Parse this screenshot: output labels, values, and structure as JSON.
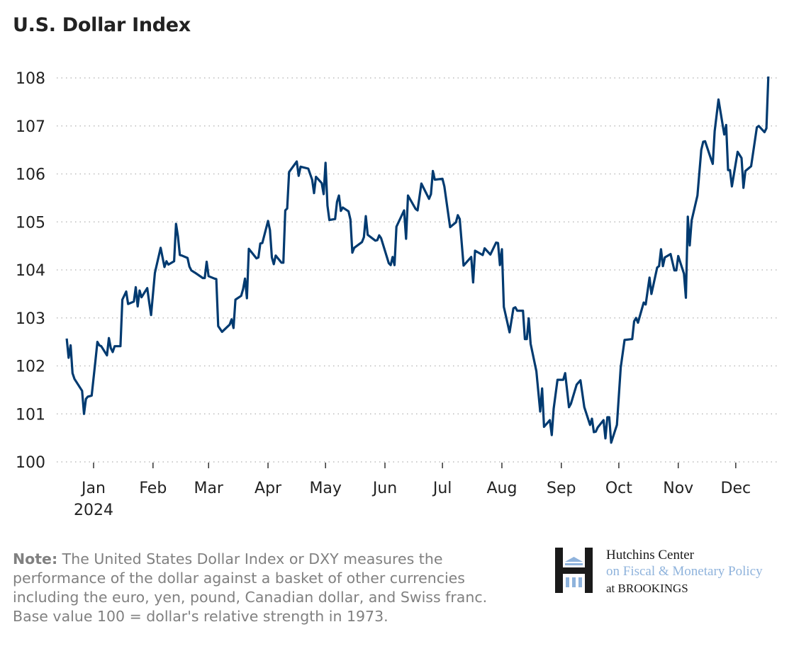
{
  "chart_data": {
    "type": "line",
    "title": "U.S. Dollar Index",
    "xlabel": "",
    "ylabel": "",
    "ylim": [
      100,
      108
    ],
    "yticks": [
      "100",
      "101",
      "102",
      "103",
      "104",
      "105",
      "106",
      "107",
      "108"
    ],
    "xticks": [
      "Jan",
      "Feb",
      "Mar",
      "Apr",
      "May",
      "Jun",
      "Jul",
      "Aug",
      "Sep",
      "Oct",
      "Nov",
      "Dec"
    ],
    "xtick_year": "2024",
    "grid": "horizontal dotted",
    "line_color": "#003a70",
    "series": [
      {
        "points": [
          [
            "2023-12-18",
            102.57
          ],
          [
            "2023-12-19",
            102.17
          ],
          [
            "2023-12-20",
            102.43
          ],
          [
            "2023-12-21",
            101.85
          ],
          [
            "2023-12-22",
            101.73
          ],
          [
            "2023-12-26",
            101.48
          ],
          [
            "2023-12-27",
            101.0
          ],
          [
            "2023-12-28",
            101.31
          ],
          [
            "2023-12-29",
            101.36
          ],
          [
            "2023-12-31",
            101.38
          ],
          [
            "2024-01-02",
            102.12
          ],
          [
            "2024-01-03",
            102.5
          ],
          [
            "2024-01-04",
            102.43
          ],
          [
            "2024-01-05",
            102.41
          ],
          [
            "2024-01-08",
            102.22
          ],
          [
            "2024-01-09",
            102.58
          ],
          [
            "2024-01-10",
            102.37
          ],
          [
            "2024-01-11",
            102.29
          ],
          [
            "2024-01-12",
            102.41
          ],
          [
            "2024-01-15",
            102.41
          ],
          [
            "2024-01-16",
            103.38
          ],
          [
            "2024-01-18",
            103.55
          ],
          [
            "2024-01-19",
            103.29
          ],
          [
            "2024-01-22",
            103.34
          ],
          [
            "2024-01-23",
            103.64
          ],
          [
            "2024-01-24",
            103.24
          ],
          [
            "2024-01-25",
            103.57
          ],
          [
            "2024-01-26",
            103.43
          ],
          [
            "2024-01-29",
            103.62
          ],
          [
            "2024-01-30",
            103.33
          ],
          [
            "2024-01-31",
            103.06
          ],
          [
            "2024-02-02",
            103.94
          ],
          [
            "2024-02-05",
            104.46
          ],
          [
            "2024-02-07",
            104.06
          ],
          [
            "2024-02-08",
            104.18
          ],
          [
            "2024-02-09",
            104.11
          ],
          [
            "2024-02-12",
            104.18
          ],
          [
            "2024-02-13",
            104.96
          ],
          [
            "2024-02-14",
            104.7
          ],
          [
            "2024-02-15",
            104.31
          ],
          [
            "2024-02-16",
            104.3
          ],
          [
            "2024-02-19",
            104.25
          ],
          [
            "2024-02-20",
            104.07
          ],
          [
            "2024-02-21",
            103.99
          ],
          [
            "2024-02-23",
            103.94
          ],
          [
            "2024-02-27",
            103.83
          ],
          [
            "2024-02-28",
            103.83
          ],
          [
            "2024-02-29",
            104.17
          ],
          [
            "2024-03-01",
            103.87
          ],
          [
            "2024-03-04",
            103.82
          ],
          [
            "2024-03-05",
            103.81
          ],
          [
            "2024-03-06",
            102.83
          ],
          [
            "2024-03-08",
            102.71
          ],
          [
            "2024-03-12",
            102.86
          ],
          [
            "2024-03-13",
            102.97
          ],
          [
            "2024-03-14",
            102.79
          ],
          [
            "2024-03-15",
            103.38
          ],
          [
            "2024-03-18",
            103.46
          ],
          [
            "2024-03-19",
            103.6
          ],
          [
            "2024-03-20",
            103.82
          ],
          [
            "2024-03-21",
            103.41
          ],
          [
            "2024-03-22",
            104.44
          ],
          [
            "2024-03-26",
            104.24
          ],
          [
            "2024-03-27",
            104.26
          ],
          [
            "2024-03-28",
            104.55
          ],
          [
            "2024-03-29",
            104.56
          ],
          [
            "2024-04-01",
            105.02
          ],
          [
            "2024-04-02",
            104.83
          ],
          [
            "2024-04-03",
            104.26
          ],
          [
            "2024-04-04",
            104.12
          ],
          [
            "2024-04-05",
            104.3
          ],
          [
            "2024-04-08",
            104.15
          ],
          [
            "2024-04-09",
            104.15
          ],
          [
            "2024-04-10",
            105.24
          ],
          [
            "2024-04-11",
            105.28
          ],
          [
            "2024-04-12",
            106.04
          ],
          [
            "2024-04-16",
            106.26
          ],
          [
            "2024-04-17",
            105.96
          ],
          [
            "2024-04-18",
            106.15
          ],
          [
            "2024-04-22",
            106.11
          ],
          [
            "2024-04-24",
            105.88
          ],
          [
            "2024-04-25",
            105.6
          ],
          [
            "2024-04-26",
            105.94
          ],
          [
            "2024-04-29",
            105.81
          ],
          [
            "2024-04-30",
            105.58
          ],
          [
            "2024-05-01",
            106.23
          ],
          [
            "2024-05-02",
            105.34
          ],
          [
            "2024-05-03",
            105.04
          ],
          [
            "2024-05-06",
            105.06
          ],
          [
            "2024-05-07",
            105.42
          ],
          [
            "2024-05-08",
            105.55
          ],
          [
            "2024-05-09",
            105.23
          ],
          [
            "2024-05-10",
            105.3
          ],
          [
            "2024-05-13",
            105.22
          ],
          [
            "2024-05-14",
            105.05
          ],
          [
            "2024-05-15",
            104.36
          ],
          [
            "2024-05-16",
            104.46
          ],
          [
            "2024-05-20",
            104.58
          ],
          [
            "2024-05-21",
            104.68
          ],
          [
            "2024-05-22",
            105.12
          ],
          [
            "2024-05-23",
            104.73
          ],
          [
            "2024-05-27",
            104.61
          ],
          [
            "2024-05-28",
            104.62
          ],
          [
            "2024-05-29",
            104.72
          ],
          [
            "2024-05-30",
            104.66
          ],
          [
            "2024-06-03",
            104.14
          ],
          [
            "2024-06-04",
            104.1
          ],
          [
            "2024-06-05",
            104.27
          ],
          [
            "2024-06-06",
            104.1
          ],
          [
            "2024-06-07",
            104.9
          ],
          [
            "2024-06-11",
            105.24
          ],
          [
            "2024-06-12",
            104.65
          ],
          [
            "2024-06-13",
            105.55
          ],
          [
            "2024-06-17",
            105.27
          ],
          [
            "2024-06-18",
            105.24
          ],
          [
            "2024-06-20",
            105.8
          ],
          [
            "2024-06-24",
            105.48
          ],
          [
            "2024-06-25",
            105.58
          ],
          [
            "2024-06-26",
            106.06
          ],
          [
            "2024-06-27",
            105.88
          ],
          [
            "2024-07-01",
            105.9
          ],
          [
            "2024-07-02",
            105.74
          ],
          [
            "2024-07-05",
            104.89
          ],
          [
            "2024-07-08",
            104.99
          ],
          [
            "2024-07-09",
            105.14
          ],
          [
            "2024-07-10",
            105.06
          ],
          [
            "2024-07-12",
            104.09
          ],
          [
            "2024-07-16",
            104.27
          ],
          [
            "2024-07-17",
            103.74
          ],
          [
            "2024-07-18",
            104.4
          ],
          [
            "2024-07-22",
            104.31
          ],
          [
            "2024-07-23",
            104.45
          ],
          [
            "2024-07-26",
            104.32
          ],
          [
            "2024-07-29",
            104.57
          ],
          [
            "2024-07-30",
            104.56
          ],
          [
            "2024-07-31",
            104.1
          ],
          [
            "2024-08-01",
            104.43
          ],
          [
            "2024-08-02",
            103.23
          ],
          [
            "2024-08-05",
            102.7
          ],
          [
            "2024-08-07",
            103.2
          ],
          [
            "2024-08-08",
            103.22
          ],
          [
            "2024-08-09",
            103.15
          ],
          [
            "2024-08-12",
            103.15
          ],
          [
            "2024-08-13",
            102.56
          ],
          [
            "2024-08-14",
            102.56
          ],
          [
            "2024-08-15",
            102.99
          ],
          [
            "2024-08-16",
            102.46
          ],
          [
            "2024-08-19",
            101.89
          ],
          [
            "2024-08-21",
            101.05
          ],
          [
            "2024-08-22",
            101.53
          ],
          [
            "2024-08-23",
            100.73
          ],
          [
            "2024-08-26",
            100.87
          ],
          [
            "2024-08-27",
            100.56
          ],
          [
            "2024-08-28",
            101.11
          ],
          [
            "2024-08-30",
            101.71
          ],
          [
            "2024-09-02",
            101.71
          ],
          [
            "2024-09-03",
            101.85
          ],
          [
            "2024-09-05",
            101.14
          ],
          [
            "2024-09-06",
            101.21
          ],
          [
            "2024-09-09",
            101.61
          ],
          [
            "2024-09-11",
            101.7
          ],
          [
            "2024-09-13",
            101.14
          ],
          [
            "2024-09-16",
            100.77
          ],
          [
            "2024-09-17",
            100.9
          ],
          [
            "2024-09-18",
            100.62
          ],
          [
            "2024-09-19",
            100.63
          ],
          [
            "2024-09-20",
            100.72
          ],
          [
            "2024-09-23",
            100.87
          ],
          [
            "2024-09-24",
            100.49
          ],
          [
            "2024-09-25",
            100.93
          ],
          [
            "2024-09-26",
            100.93
          ],
          [
            "2024-09-27",
            100.4
          ],
          [
            "2024-09-30",
            100.77
          ],
          [
            "2024-10-02",
            101.97
          ],
          [
            "2024-10-04",
            102.54
          ],
          [
            "2024-10-08",
            102.56
          ],
          [
            "2024-10-09",
            102.93
          ],
          [
            "2024-10-10",
            103.0
          ],
          [
            "2024-10-11",
            102.9
          ],
          [
            "2024-10-14",
            103.32
          ],
          [
            "2024-10-15",
            103.28
          ],
          [
            "2024-10-17",
            103.84
          ],
          [
            "2024-10-18",
            103.5
          ],
          [
            "2024-10-21",
            104.05
          ],
          [
            "2024-10-22",
            104.08
          ],
          [
            "2024-10-23",
            104.43
          ],
          [
            "2024-10-24",
            104.08
          ],
          [
            "2024-10-25",
            104.26
          ],
          [
            "2024-10-28",
            104.33
          ],
          [
            "2024-10-30",
            103.99
          ],
          [
            "2024-10-31",
            103.99
          ],
          [
            "2024-11-01",
            104.29
          ],
          [
            "2024-11-04",
            103.92
          ],
          [
            "2024-11-05",
            103.42
          ],
          [
            "2024-11-06",
            105.11
          ],
          [
            "2024-11-07",
            104.51
          ],
          [
            "2024-11-08",
            105.03
          ],
          [
            "2024-11-11",
            105.55
          ],
          [
            "2024-11-13",
            106.5
          ],
          [
            "2024-11-14",
            106.67
          ],
          [
            "2024-11-15",
            106.68
          ],
          [
            "2024-11-18",
            106.32
          ],
          [
            "2024-11-19",
            106.21
          ],
          [
            "2024-11-20",
            106.89
          ],
          [
            "2024-11-22",
            107.55
          ],
          [
            "2024-11-25",
            106.82
          ],
          [
            "2024-11-26",
            107.02
          ],
          [
            "2024-11-27",
            106.08
          ],
          [
            "2024-11-28",
            106.08
          ],
          [
            "2024-11-29",
            105.74
          ],
          [
            "2024-12-02",
            106.46
          ],
          [
            "2024-12-04",
            106.33
          ],
          [
            "2024-12-05",
            105.71
          ],
          [
            "2024-12-06",
            106.06
          ],
          [
            "2024-12-09",
            106.16
          ],
          [
            "2024-12-12",
            106.97
          ],
          [
            "2024-12-13",
            107.0
          ],
          [
            "2024-12-16",
            106.87
          ],
          [
            "2024-12-17",
            106.95
          ],
          [
            "2024-12-18",
            108.03
          ]
        ]
      }
    ]
  },
  "note": {
    "label": "Note:",
    "text": " The United States Dollar Index or DXY measures the performance of the dollar against a basket of other currencies including the euro, yen, pound, Canadian dollar, and Swiss franc. Base value 100 = dollar's relative strength in 1973."
  },
  "logo": {
    "line1": "Hutchins Center",
    "line2": "on Fiscal & Monetary Policy",
    "line3": "at BROOKINGS",
    "colors": {
      "dark": "#1a1a1a",
      "blue": "#8fb3dc"
    }
  }
}
